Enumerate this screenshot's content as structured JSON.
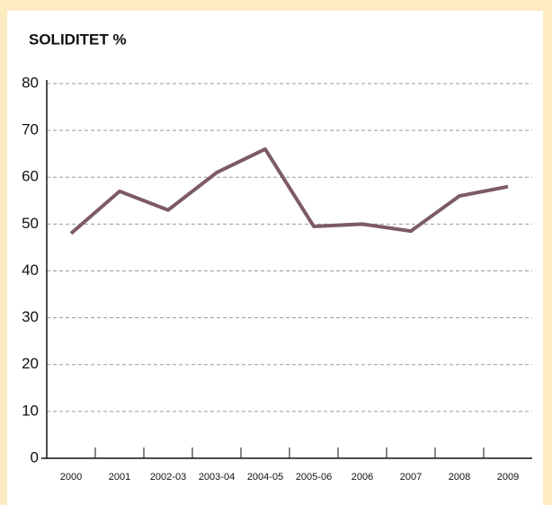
{
  "chart_data": {
    "type": "line",
    "title": "SOLIDITET %",
    "categories": [
      "2000",
      "2001",
      "2002-03",
      "2003-04",
      "2004-05",
      "2005-06",
      "2006",
      "2007",
      "2008",
      "2009"
    ],
    "series": [
      {
        "name": "Soliditet",
        "color": "#7d5b64",
        "values": [
          48,
          57,
          53,
          61,
          66,
          49.5,
          50,
          48.5,
          56,
          58
        ]
      }
    ],
    "ylim": [
      0,
      80
    ],
    "yticks": [
      0,
      10,
      20,
      30,
      40,
      50,
      60,
      70,
      80
    ],
    "grid": true
  }
}
